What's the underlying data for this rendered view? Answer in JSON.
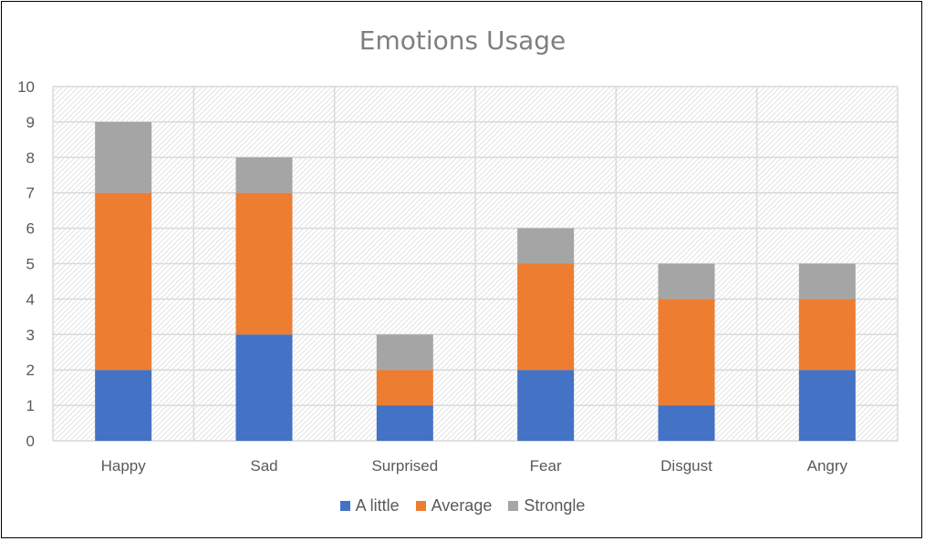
{
  "chart_data": {
    "type": "bar",
    "stacked": true,
    "title": "Emotions Usage",
    "xlabel": "",
    "ylabel": "",
    "categories": [
      "Happy",
      "Sad",
      "Surprised",
      "Fear",
      "Disgust",
      "Angry"
    ],
    "series": [
      {
        "name": "A little",
        "color": "#4472c4",
        "values": [
          2,
          3,
          1,
          2,
          1,
          2
        ]
      },
      {
        "name": "Average",
        "color": "#ed7d31",
        "values": [
          5,
          4,
          1,
          3,
          3,
          2
        ]
      },
      {
        "name": "Strongle",
        "color": "#a5a5a5",
        "values": [
          2,
          1,
          1,
          1,
          1,
          1
        ]
      }
    ],
    "ylim": [
      0,
      10
    ],
    "yticks": [
      "0",
      "1",
      "2",
      "3",
      "4",
      "5",
      "6",
      "7",
      "8",
      "9",
      "10"
    ],
    "grid": true,
    "legend_position": "bottom"
  }
}
